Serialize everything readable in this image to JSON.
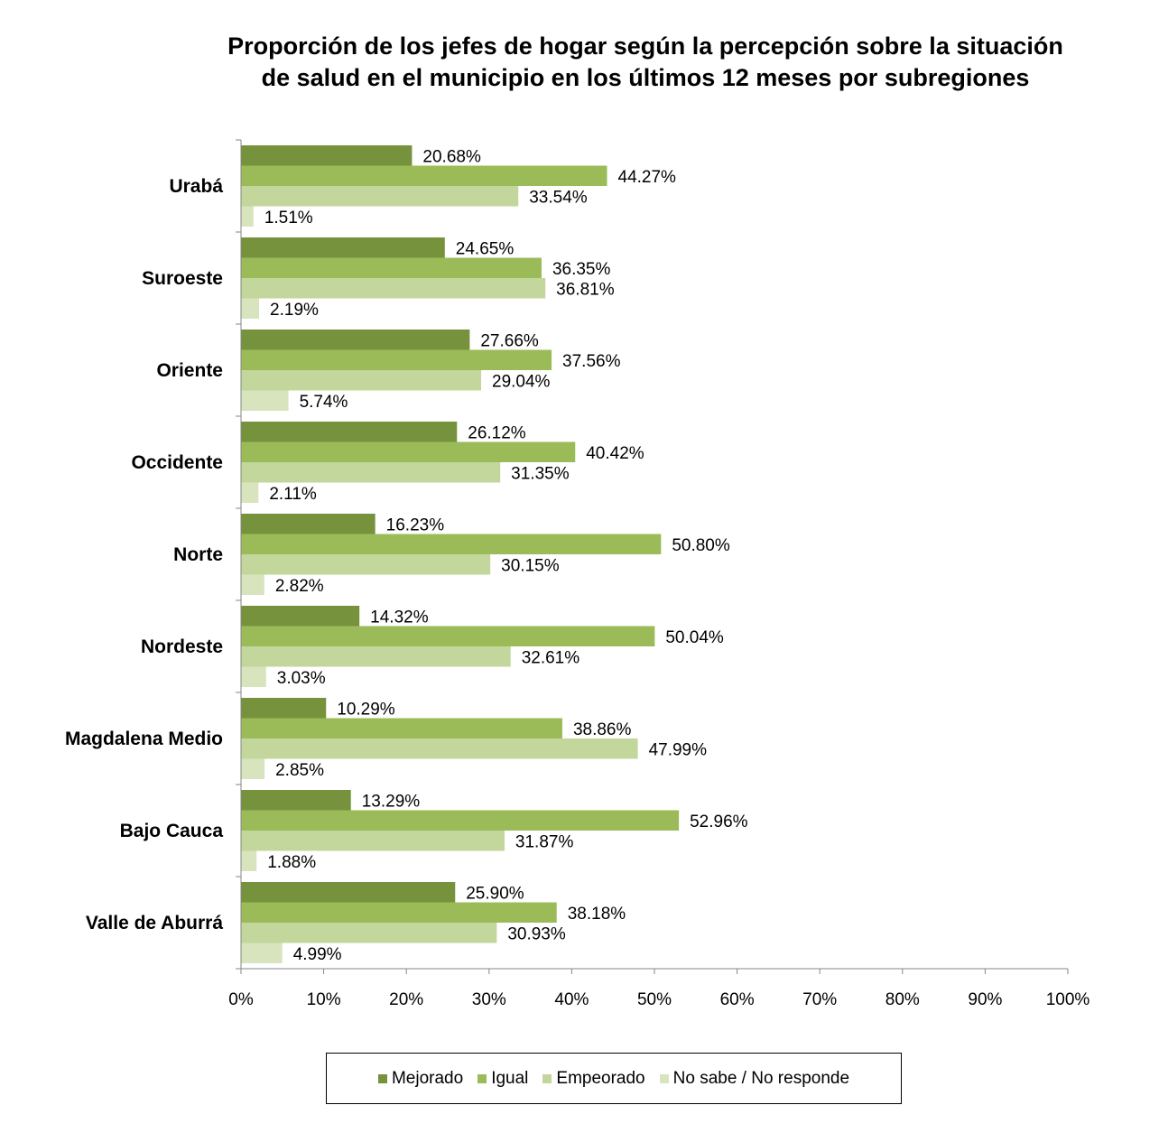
{
  "chart_data": {
    "type": "bar",
    "orientation": "horizontal",
    "title": [
      "Proporción de los jefes de hogar según la percepción sobre la situación",
      "de salud en el municipio en los últimos 12 meses por subregiones"
    ],
    "categories": [
      "Urabá",
      "Suroeste",
      "Oriente",
      "Occidente",
      "Norte",
      "Nordeste",
      "Magdalena Medio",
      "Bajo Cauca",
      "Valle de Aburrá"
    ],
    "series": [
      {
        "name": "Mejorado",
        "color": "#76923c",
        "values": [
          20.68,
          24.65,
          27.66,
          26.12,
          16.23,
          14.32,
          10.29,
          13.29,
          25.9
        ],
        "labels": [
          "20.68%",
          "24.65%",
          "27.66%",
          "26.12%",
          "16.23%",
          "14.32%",
          "10.29%",
          "13.29%",
          "25.90%"
        ]
      },
      {
        "name": "Igual",
        "color": "#9bbb59",
        "values": [
          44.27,
          36.35,
          37.56,
          40.42,
          50.8,
          50.04,
          38.86,
          52.96,
          38.18
        ],
        "labels": [
          "44.27%",
          "36.35%",
          "37.56%",
          "40.42%",
          "50.80%",
          "50.04%",
          "38.86%",
          "52.96%",
          "38.18%"
        ]
      },
      {
        "name": "Empeorado",
        "color": "#c3d69b",
        "values": [
          33.54,
          36.81,
          29.04,
          31.35,
          30.15,
          32.61,
          47.99,
          31.87,
          30.93
        ],
        "labels": [
          "33.54%",
          "36.81%",
          "29.04%",
          "31.35%",
          "30.15%",
          "32.61%",
          "47.99%",
          "31.87%",
          "30.93%"
        ]
      },
      {
        "name": "No sabe / No responde",
        "color": "#d7e4bd",
        "values": [
          1.51,
          2.19,
          5.74,
          2.11,
          2.82,
          3.03,
          2.85,
          1.88,
          4.99
        ],
        "labels": [
          "1.51%",
          "2.19%",
          "5.74%",
          "2.11%",
          "2.82%",
          "3.03%",
          "2.85%",
          "1.88%",
          "4.99%"
        ]
      }
    ],
    "xlim": [
      0,
      100
    ],
    "xticks": [
      0,
      10,
      20,
      30,
      40,
      50,
      60,
      70,
      80,
      90,
      100
    ],
    "xtick_labels": [
      "0%",
      "10%",
      "20%",
      "30%",
      "40%",
      "50%",
      "60%",
      "70%",
      "80%",
      "90%",
      "100%"
    ],
    "grid": false,
    "legend_position": "bottom"
  }
}
